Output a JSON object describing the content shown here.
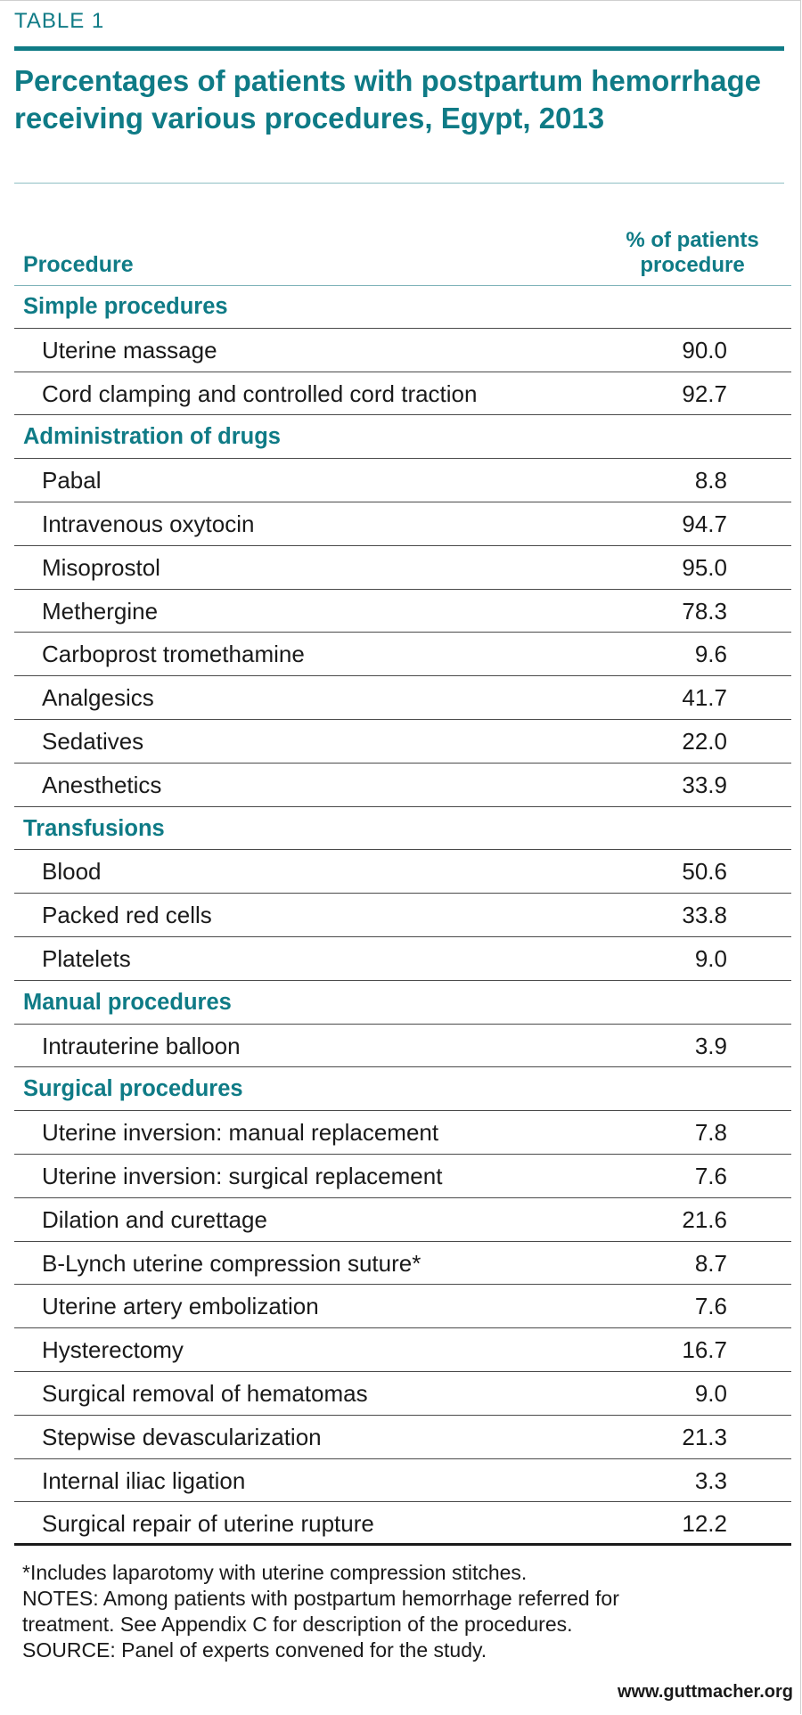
{
  "header": {
    "kicker": "TABLE 1",
    "title": "Percentages of patients with postpartum hemorrhage receiving various procedures, Egypt, 2013"
  },
  "columns": {
    "procedure": "Procedure",
    "percent_line1": "% of patients",
    "percent_line2": "procedure"
  },
  "chart_data": {
    "type": "table",
    "title": "Percentages of patients with postpartum hemorrhage receiving various procedures, Egypt, 2013",
    "columns": [
      "Procedure",
      "% of patients procedure"
    ],
    "rows": [
      {
        "section": "Simple procedures"
      },
      {
        "label": "Uterine massage",
        "value": "90.0"
      },
      {
        "label": "Cord clamping and controlled cord traction",
        "value": "92.7"
      },
      {
        "section": "Administration of drugs"
      },
      {
        "label": "Pabal",
        "value": "8.8"
      },
      {
        "label": "Intravenous oxytocin",
        "value": "94.7"
      },
      {
        "label": "Misoprostol",
        "value": "95.0"
      },
      {
        "label": "Methergine",
        "value": "78.3"
      },
      {
        "label": "Carboprost tromethamine",
        "value": "9.6"
      },
      {
        "label": "Analgesics",
        "value": "41.7"
      },
      {
        "label": "Sedatives",
        "value": "22.0"
      },
      {
        "label": "Anesthetics",
        "value": "33.9"
      },
      {
        "section": "Transfusions"
      },
      {
        "label": "Blood",
        "value": "50.6"
      },
      {
        "label": "Packed red cells",
        "value": "33.8"
      },
      {
        "label": "Platelets",
        "value": "9.0"
      },
      {
        "section": "Manual procedures"
      },
      {
        "label": "Intrauterine balloon",
        "value": "3.9"
      },
      {
        "section": "Surgical procedures"
      },
      {
        "label": "Uterine inversion: manual replacement",
        "value": "7.8"
      },
      {
        "label": "Uterine inversion: surgical replacement",
        "value": "7.6"
      },
      {
        "label": "Dilation and curettage",
        "value": "21.6"
      },
      {
        "label": "B-Lynch uterine compression suture*",
        "value": "8.7"
      },
      {
        "label": "Uterine artery embolization",
        "value": "7.6"
      },
      {
        "label": "Hysterectomy",
        "value": "16.7"
      },
      {
        "label": "Surgical removal of hematomas",
        "value": "9.0"
      },
      {
        "label": "Stepwise devascularization",
        "value": "21.3"
      },
      {
        "label": "Internal iliac ligation",
        "value": "3.3"
      },
      {
        "label": "Surgical repair of uterine rupture",
        "value": "12.2"
      }
    ]
  },
  "notes": {
    "footnote": "*Includes laparotomy with uterine compression stitches.",
    "notes_line1": "NOTES: Among patients with postpartum hemorrhage referred for",
    "notes_line2": "treatment. See Appendix C for description of the procedures.",
    "source": "SOURCE: Panel of experts convened for the study."
  },
  "footer": {
    "url": "www.guttmacher.org"
  },
  "colors": {
    "accent": "#0f7b86",
    "text": "#1a1a1a"
  }
}
